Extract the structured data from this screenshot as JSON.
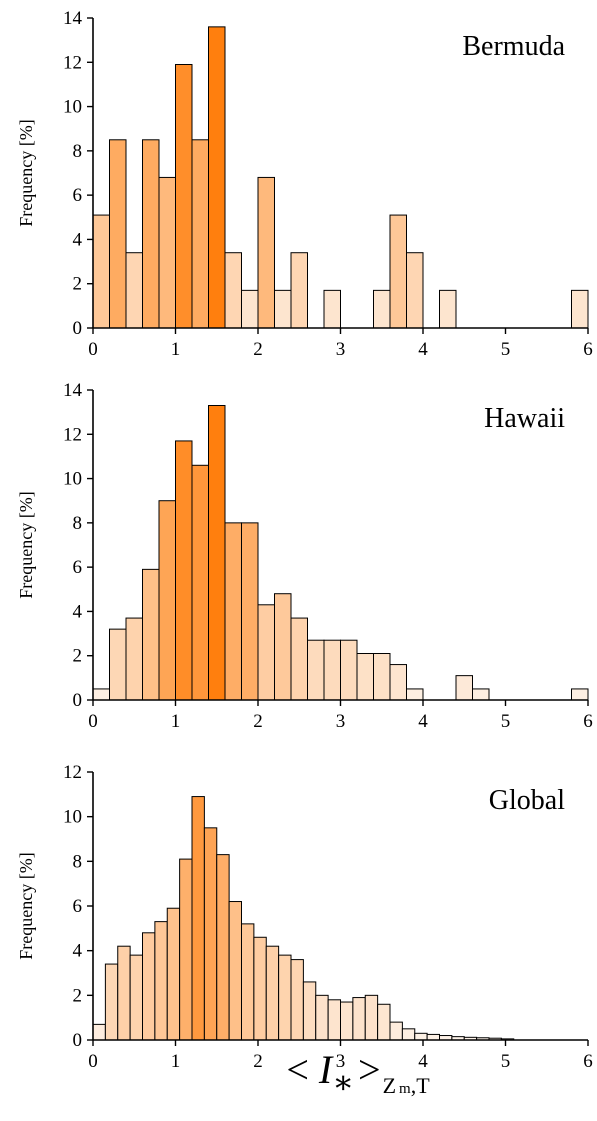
{
  "colors": {
    "light": "#fdf3ea",
    "dark": "#ff7f0e",
    "edge": "#000000",
    "empty": "#ffffff"
  },
  "xlabel": {
    "open": "<",
    "var": "I",
    "star": "∗",
    "close": ">",
    "sub1": "Z",
    "sub2": "m",
    "sep": ",",
    "sub3": "T"
  },
  "chart_data": [
    {
      "type": "bar",
      "title": "Bermuda",
      "ylabel": "Frequency [%]",
      "xlim": [
        0,
        6
      ],
      "ylim": [
        0,
        14
      ],
      "xticks": [
        0,
        1,
        2,
        3,
        4,
        5,
        6
      ],
      "yticks": [
        0,
        2,
        4,
        6,
        8,
        10,
        12,
        14
      ],
      "bin_width": 0.2,
      "color_max": 13.6,
      "bin_starts": [
        0,
        0.2,
        0.4,
        0.6,
        0.8,
        1.0,
        1.2,
        1.4,
        1.6,
        1.8,
        2.0,
        2.2,
        2.4,
        2.6,
        2.8,
        3.0,
        3.2,
        3.4,
        3.6,
        3.8,
        4.0,
        4.2,
        4.4,
        4.6,
        4.8,
        5.0,
        5.2,
        5.4,
        5.6,
        5.8
      ],
      "values": [
        5.1,
        8.5,
        3.4,
        8.5,
        6.8,
        11.9,
        8.5,
        13.6,
        3.4,
        1.7,
        6.8,
        1.7,
        3.4,
        0,
        1.7,
        0,
        0,
        1.7,
        5.1,
        3.4,
        0,
        1.7,
        0,
        0,
        0,
        0,
        0,
        0,
        0,
        1.7
      ]
    },
    {
      "type": "bar",
      "title": "Hawaii",
      "ylabel": "Frequency [%]",
      "xlim": [
        0,
        6
      ],
      "ylim": [
        0,
        14
      ],
      "xticks": [
        0,
        1,
        2,
        3,
        4,
        5,
        6
      ],
      "yticks": [
        0,
        2,
        4,
        6,
        8,
        10,
        12,
        14
      ],
      "bin_width": 0.2,
      "color_max": 13.3,
      "bin_starts": [
        0,
        0.2,
        0.4,
        0.6,
        0.8,
        1.0,
        1.2,
        1.4,
        1.6,
        1.8,
        2.0,
        2.2,
        2.4,
        2.6,
        2.8,
        3.0,
        3.2,
        3.4,
        3.6,
        3.8,
        4.0,
        4.2,
        4.4,
        4.6,
        4.8,
        5.0,
        5.2,
        5.4,
        5.6,
        5.8
      ],
      "values": [
        0.5,
        3.2,
        3.7,
        5.9,
        9.0,
        11.7,
        10.6,
        13.3,
        8.0,
        8.0,
        4.3,
        4.8,
        3.7,
        2.7,
        2.7,
        2.7,
        2.1,
        2.1,
        1.6,
        0.5,
        0,
        0,
        1.1,
        0.5,
        0,
        0,
        0,
        0,
        0,
        0.5
      ]
    },
    {
      "type": "bar",
      "title": "Global",
      "ylabel": "Frequency [%]",
      "xlim": [
        0,
        6
      ],
      "ylim": [
        0,
        12
      ],
      "xticks": [
        0,
        1,
        2,
        3,
        4,
        5,
        6
      ],
      "yticks": [
        0,
        2,
        4,
        6,
        8,
        10,
        12
      ],
      "bin_width": 0.15,
      "color_max": 14,
      "bin_starts": [
        0,
        0.15,
        0.3,
        0.45,
        0.6,
        0.75,
        0.9,
        1.05,
        1.2,
        1.35,
        1.5,
        1.65,
        1.8,
        1.95,
        2.1,
        2.25,
        2.4,
        2.55,
        2.7,
        2.85,
        3.0,
        3.15,
        3.3,
        3.45,
        3.6,
        3.75,
        3.9,
        4.05,
        4.2,
        4.35,
        4.5,
        4.65,
        4.8,
        4.95
      ],
      "values": [
        0.7,
        3.4,
        4.2,
        3.8,
        4.8,
        5.3,
        5.9,
        8.1,
        10.9,
        9.5,
        8.3,
        6.2,
        5.2,
        4.6,
        4.2,
        3.8,
        3.6,
        2.6,
        2.0,
        1.8,
        1.7,
        1.9,
        2.0,
        1.6,
        0.8,
        0.5,
        0.3,
        0.25,
        0.2,
        0.15,
        0.12,
        0.1,
        0.08,
        0.05
      ]
    }
  ]
}
